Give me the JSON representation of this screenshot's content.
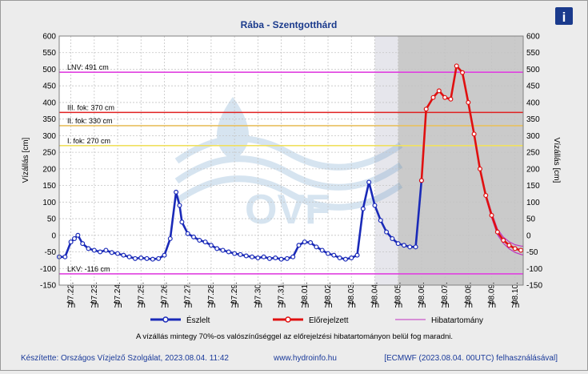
{
  "chart_data": {
    "type": "line",
    "title": "Rába - Szentgotthárd",
    "ylabel_left": "Vízállás [cm]",
    "ylabel_right": "Vízállás [cm]",
    "ylim": [
      -150,
      600
    ],
    "yticks": [
      -150,
      -100,
      -50,
      0,
      50,
      100,
      150,
      200,
      250,
      300,
      350,
      400,
      450,
      500,
      550,
      600
    ],
    "x_tick_labels": [
      {
        "date": "07.22.",
        "time": "7h"
      },
      {
        "date": "07.23.",
        "time": "7h"
      },
      {
        "date": "07.24.",
        "time": "7h"
      },
      {
        "date": "07.25.",
        "time": "7h"
      },
      {
        "date": "07.26.",
        "time": "7h"
      },
      {
        "date": "07.27.",
        "time": "7h"
      },
      {
        "date": "07.28.",
        "time": "7h"
      },
      {
        "date": "07.29.",
        "time": "7h"
      },
      {
        "date": "07.30.",
        "time": "7h"
      },
      {
        "date": "07.31.",
        "time": "7h"
      },
      {
        "date": "08.01.",
        "time": "7h"
      },
      {
        "date": "08.02.",
        "time": "7h"
      },
      {
        "date": "08.03.",
        "time": "7h"
      },
      {
        "date": "08.04.",
        "time": "7h"
      },
      {
        "date": "08.05.",
        "time": "7h"
      },
      {
        "date": "08.06.",
        "time": "7h"
      },
      {
        "date": "08.07.",
        "time": "7h"
      },
      {
        "date": "08.08.",
        "time": "7h"
      },
      {
        "date": "08.09.",
        "time": "7h"
      },
      {
        "date": "08.10.",
        "time": "7h"
      }
    ],
    "x_range_days": [
      -0.5,
      19.35
    ],
    "forecast_start_day": 13,
    "shaded_region_start_day": 14,
    "levels": [
      {
        "label": "LNV: 491 cm",
        "value": 491,
        "color": "#e040e0"
      },
      {
        "label": "III. fok: 370 cm",
        "value": 370,
        "color": "#e02020"
      },
      {
        "label": "II. fok: 330 cm",
        "value": 330,
        "color": "#e8c060"
      },
      {
        "label": "I. fok: 270 cm",
        "value": 270,
        "color": "#f0e060"
      },
      {
        "label": "LKV: -116 cm",
        "value": -116,
        "color": "#e040e0"
      }
    ],
    "series": [
      {
        "name": "Észlelt",
        "color": "#1a2ab8",
        "points": [
          [
            -0.5,
            -65
          ],
          [
            -0.25,
            -65
          ],
          [
            0,
            -20
          ],
          [
            0.15,
            -10
          ],
          [
            0.3,
            0
          ],
          [
            0.5,
            -25
          ],
          [
            0.75,
            -40
          ],
          [
            1,
            -45
          ],
          [
            1.25,
            -50
          ],
          [
            1.5,
            -45
          ],
          [
            1.75,
            -52
          ],
          [
            2,
            -55
          ],
          [
            2.25,
            -60
          ],
          [
            2.5,
            -65
          ],
          [
            2.75,
            -70
          ],
          [
            3,
            -68
          ],
          [
            3.25,
            -70
          ],
          [
            3.5,
            -72
          ],
          [
            3.75,
            -70
          ],
          [
            4,
            -60
          ],
          [
            4.25,
            -10
          ],
          [
            4.5,
            130
          ],
          [
            4.65,
            90
          ],
          [
            4.75,
            40
          ],
          [
            5,
            5
          ],
          [
            5.25,
            -5
          ],
          [
            5.5,
            -15
          ],
          [
            5.75,
            -20
          ],
          [
            6,
            -30
          ],
          [
            6.25,
            -40
          ],
          [
            6.5,
            -45
          ],
          [
            6.75,
            -50
          ],
          [
            7,
            -55
          ],
          [
            7.25,
            -58
          ],
          [
            7.5,
            -62
          ],
          [
            7.75,
            -65
          ],
          [
            8,
            -68
          ],
          [
            8.25,
            -65
          ],
          [
            8.5,
            -70
          ],
          [
            8.75,
            -68
          ],
          [
            9,
            -72
          ],
          [
            9.25,
            -70
          ],
          [
            9.5,
            -65
          ],
          [
            9.75,
            -30
          ],
          [
            10,
            -20
          ],
          [
            10.25,
            -22
          ],
          [
            10.5,
            -35
          ],
          [
            10.75,
            -45
          ],
          [
            11,
            -55
          ],
          [
            11.25,
            -60
          ],
          [
            11.5,
            -68
          ],
          [
            11.75,
            -72
          ],
          [
            12,
            -68
          ],
          [
            12.25,
            -60
          ],
          [
            12.5,
            80
          ],
          [
            12.75,
            160
          ],
          [
            13,
            90
          ],
          [
            13.25,
            45
          ],
          [
            13.5,
            10
          ],
          [
            13.75,
            -10
          ],
          [
            14,
            -25
          ],
          [
            14.25,
            -30
          ],
          [
            14.5,
            -35
          ],
          [
            14.75,
            -35
          ],
          [
            15,
            165
          ]
        ]
      },
      {
        "name": "Előrejelzett",
        "color": "#e01010",
        "points": [
          [
            15,
            165
          ],
          [
            15.2,
            380
          ],
          [
            15.5,
            415
          ],
          [
            15.75,
            435
          ],
          [
            16,
            415
          ],
          [
            16.25,
            410
          ],
          [
            16.5,
            510
          ],
          [
            16.75,
            490
          ],
          [
            17,
            400
          ],
          [
            17.25,
            305
          ],
          [
            17.5,
            200
          ],
          [
            17.75,
            120
          ],
          [
            18,
            60
          ],
          [
            18.25,
            10
          ],
          [
            18.5,
            -15
          ],
          [
            18.75,
            -30
          ],
          [
            19,
            -40
          ],
          [
            19.25,
            -45
          ],
          [
            19.5,
            -48
          ],
          [
            19.75,
            -50
          ],
          [
            20,
            -52
          ],
          [
            20.25,
            -54
          ],
          [
            20.5,
            -55
          ],
          [
            20.75,
            -56
          ],
          [
            21,
            -57
          ],
          [
            21.25,
            -58
          ],
          [
            21.5,
            -59
          ]
        ]
      },
      {
        "name": "Hibatartomány",
        "color": "#c030c0"
      }
    ]
  },
  "note": "A vízállás mintegy 70%-os valószínűséggel az előrejelzési hibatartományon belül fog maradni.",
  "footer": {
    "left": "Készítette: Országos Vízjelző Szolgálat, 2023.08.04. 11:42",
    "center": "www.hydroinfo.hu",
    "right": "[ECMWF (2023.08.04. 00UTC) felhasználásával]"
  },
  "info_icon": "info-icon"
}
